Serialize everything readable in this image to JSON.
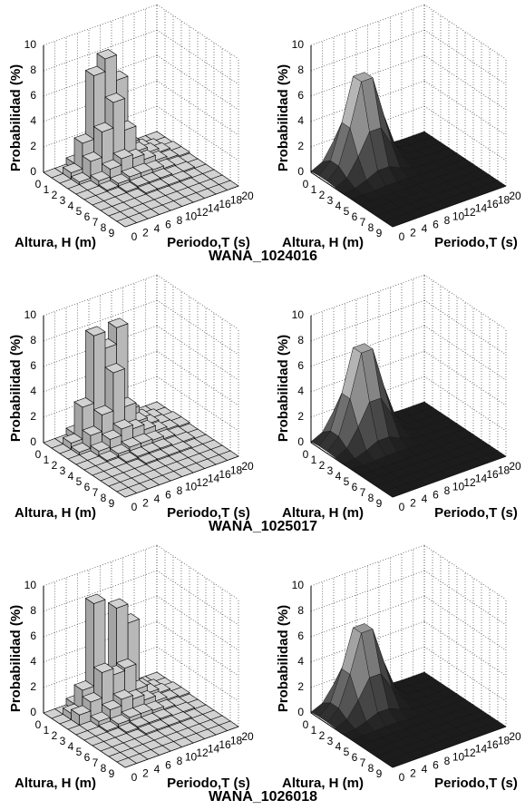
{
  "chart_data": [
    {
      "type": "bar3d",
      "zlabel": "Probabilidad (%)",
      "xlabel": "Altura, H (m)",
      "ylabel": "Periodo,T (s)",
      "color": "#c8c8c8",
      "grid": true,
      "xlim": [
        0,
        10
      ],
      "ylim": [
        0,
        20
      ],
      "zlim": [
        0,
        10
      ],
      "xticks": [
        0,
        1,
        2,
        3,
        4,
        5,
        6,
        7,
        8,
        9
      ],
      "yticks": [
        0,
        2,
        4,
        6,
        8,
        10,
        12,
        14,
        16,
        18,
        20
      ],
      "zticks": [
        0,
        2,
        4,
        6,
        8,
        10
      ],
      "x": [
        0,
        1,
        2,
        3,
        4,
        5,
        6,
        7,
        8,
        9
      ],
      "y": [
        0,
        2,
        4,
        6,
        8,
        10,
        12,
        14,
        16,
        18
      ],
      "z": [
        [
          0,
          0,
          0.5,
          1,
          1,
          0.5,
          0.3,
          0.1,
          0,
          0
        ],
        [
          0,
          0.5,
          2.5,
          7.5,
          8.5,
          6.5,
          1.2,
          0.5,
          0.2,
          0
        ],
        [
          0,
          0.2,
          1.5,
          3.5,
          5.5,
          3,
          1,
          0.6,
          0.3,
          0.1
        ],
        [
          0,
          0,
          0.4,
          1,
          1.5,
          1.2,
          0.8,
          0.4,
          0.2,
          0.1
        ],
        [
          0,
          0,
          0.1,
          0.3,
          0.5,
          0.5,
          0.4,
          0.2,
          0.1,
          0
        ],
        [
          0,
          0,
          0,
          0.1,
          0.2,
          0.2,
          0.2,
          0.1,
          0.1,
          0
        ],
        [
          0,
          0,
          0,
          0,
          0.1,
          0.1,
          0.1,
          0.1,
          0,
          0
        ],
        [
          0,
          0,
          0,
          0,
          0,
          0,
          0,
          0,
          0,
          0
        ],
        [
          0,
          0,
          0,
          0,
          0,
          0,
          0,
          0,
          0,
          0
        ],
        [
          0,
          0,
          0,
          0,
          0,
          0,
          0,
          0,
          0,
          0
        ]
      ]
    },
    {
      "type": "surface",
      "zlabel": "Probabilidad (%)",
      "xlabel": "Altura, H (m)",
      "ylabel": "Periodo,T (s)",
      "color": "#111111",
      "grid": true,
      "xlim": [
        0,
        10
      ],
      "ylim": [
        0,
        20
      ],
      "zlim": [
        0,
        10
      ],
      "xticks": [
        0,
        1,
        2,
        3,
        4,
        5,
        6,
        7,
        8,
        9
      ],
      "yticks": [
        0,
        2,
        4,
        6,
        8,
        10,
        12,
        14,
        16,
        18,
        20
      ],
      "zticks": [
        0,
        2,
        4,
        6,
        8,
        10
      ],
      "x": [
        0,
        1,
        2,
        3,
        4,
        5,
        6,
        7,
        8,
        9,
        10
      ],
      "y": [
        0,
        2,
        4,
        6,
        8,
        10,
        12,
        14,
        16,
        18,
        20
      ],
      "z": [
        [
          0.08,
          0.51,
          1.85,
          3.51,
          3.51,
          1.85,
          0.51,
          0.08,
          0.01,
          0,
          0
        ],
        [
          0.15,
          1.03,
          3.71,
          7.02,
          7.02,
          3.71,
          1.03,
          0.15,
          0.01,
          0,
          0
        ],
        [
          0.15,
          1.03,
          3.71,
          7.02,
          7.02,
          3.71,
          1.03,
          0.15,
          0.01,
          0,
          0
        ],
        [
          0.08,
          0.51,
          1.85,
          3.51,
          3.51,
          1.85,
          0.51,
          0.08,
          0.01,
          0,
          0
        ],
        [
          0.02,
          0.13,
          0.46,
          0.88,
          0.88,
          0.46,
          0.13,
          0.02,
          0,
          0,
          0
        ],
        [
          0,
          0.02,
          0.06,
          0.11,
          0.11,
          0.06,
          0.02,
          0,
          0,
          0,
          0
        ],
        [
          0,
          0,
          0,
          0.01,
          0.01,
          0,
          0,
          0,
          0,
          0,
          0
        ],
        [
          0,
          0,
          0,
          0,
          0,
          0,
          0,
          0,
          0,
          0,
          0
        ],
        [
          0,
          0,
          0,
          0,
          0,
          0,
          0,
          0,
          0,
          0,
          0
        ],
        [
          0,
          0,
          0,
          0,
          0,
          0,
          0,
          0,
          0,
          0,
          0
        ],
        [
          0,
          0,
          0,
          0,
          0,
          0,
          0,
          0,
          0,
          0,
          0
        ]
      ]
    },
    {
      "type": "bar3d",
      "zlabel": "Probabilidad (%)",
      "xlabel": "Altura, H (m)",
      "ylabel": "Periodo,T (s)",
      "color": "#c8c8c8",
      "grid": true,
      "xlim": [
        0,
        10
      ],
      "ylim": [
        0,
        20
      ],
      "zlim": [
        0,
        10
      ],
      "xticks": [
        0,
        1,
        2,
        3,
        4,
        5,
        6,
        7,
        8,
        9
      ],
      "yticks": [
        0,
        2,
        4,
        6,
        8,
        10,
        12,
        14,
        16,
        18,
        20
      ],
      "zticks": [
        0,
        2,
        4,
        6,
        8,
        10
      ],
      "x": [
        0,
        1,
        2,
        3,
        4,
        5,
        6,
        7,
        8,
        9
      ],
      "y": [
        0,
        2,
        4,
        6,
        8,
        10,
        12,
        14,
        16,
        18
      ],
      "z": [
        [
          0,
          0,
          0.5,
          1,
          1,
          0.5,
          0.3,
          0.1,
          0,
          0
        ],
        [
          0,
          0.5,
          3,
          8.3,
          7,
          8.3,
          1.5,
          0.5,
          0.2,
          0
        ],
        [
          0,
          0.2,
          1.2,
          2.5,
          5.5,
          2.5,
          1,
          0.5,
          0.2,
          0.1
        ],
        [
          0,
          0,
          0.4,
          1,
          1.5,
          1.2,
          0.8,
          0.4,
          0.2,
          0.1
        ],
        [
          0,
          0,
          0.1,
          0.3,
          0.5,
          0.5,
          0.4,
          0.2,
          0.1,
          0
        ],
        [
          0,
          0,
          0,
          0.1,
          0.2,
          0.2,
          0.2,
          0.1,
          0.1,
          0
        ],
        [
          0,
          0,
          0,
          0,
          0.1,
          0.1,
          0.1,
          0.1,
          0,
          0
        ],
        [
          0,
          0,
          0,
          0,
          0,
          0,
          0,
          0,
          0,
          0
        ],
        [
          0,
          0,
          0,
          0,
          0,
          0,
          0,
          0,
          0,
          0
        ],
        [
          0,
          0,
          0,
          0,
          0,
          0,
          0,
          0,
          0,
          0
        ]
      ]
    },
    {
      "type": "surface",
      "zlabel": "Probabilidad (%)",
      "xlabel": "Altura, H (m)",
      "ylabel": "Periodo,T (s)",
      "color": "#111111",
      "grid": true,
      "xlim": [
        0,
        10
      ],
      "ylim": [
        0,
        20
      ],
      "zlim": [
        0,
        10
      ],
      "xticks": [
        0,
        1,
        2,
        3,
        4,
        5,
        6,
        7,
        8,
        9
      ],
      "yticks": [
        0,
        2,
        4,
        6,
        8,
        10,
        12,
        14,
        16,
        18,
        20
      ],
      "zticks": [
        0,
        2,
        4,
        6,
        8,
        10
      ],
      "x": [
        0,
        1,
        2,
        3,
        4,
        5,
        6,
        7,
        8,
        9,
        10
      ],
      "y": [
        0,
        2,
        4,
        6,
        8,
        10,
        12,
        14,
        16,
        18,
        20
      ],
      "z": [
        [
          0.08,
          0.51,
          1.85,
          3.51,
          3.51,
          1.85,
          0.51,
          0.08,
          0.01,
          0,
          0
        ],
        [
          0.15,
          1.02,
          3.67,
          6.95,
          6.95,
          3.67,
          1.02,
          0.15,
          0.01,
          0,
          0
        ],
        [
          0.15,
          1.02,
          3.67,
          6.95,
          6.95,
          3.67,
          1.02,
          0.15,
          0.01,
          0,
          0
        ],
        [
          0.08,
          0.51,
          1.85,
          3.51,
          3.51,
          1.85,
          0.51,
          0.08,
          0.01,
          0,
          0
        ],
        [
          0.02,
          0.13,
          0.46,
          0.88,
          0.88,
          0.46,
          0.13,
          0.02,
          0,
          0,
          0
        ],
        [
          0,
          0.02,
          0.06,
          0.11,
          0.11,
          0.06,
          0.02,
          0,
          0,
          0,
          0
        ],
        [
          0,
          0,
          0,
          0.01,
          0.01,
          0,
          0,
          0,
          0,
          0,
          0
        ],
        [
          0,
          0,
          0,
          0,
          0,
          0,
          0,
          0,
          0,
          0,
          0
        ],
        [
          0,
          0,
          0,
          0,
          0,
          0,
          0,
          0,
          0,
          0,
          0
        ],
        [
          0,
          0,
          0,
          0,
          0,
          0,
          0,
          0,
          0,
          0,
          0
        ],
        [
          0,
          0,
          0,
          0,
          0,
          0,
          0,
          0,
          0,
          0,
          0
        ]
      ]
    },
    {
      "type": "bar3d",
      "zlabel": "Probabilidad (%)",
      "xlabel": "Altura, H (m)",
      "ylabel": "Periodo,T (s)",
      "color": "#c8c8c8",
      "grid": true,
      "xlim": [
        0,
        10
      ],
      "ylim": [
        0,
        20
      ],
      "zlim": [
        0,
        10
      ],
      "xticks": [
        0,
        1,
        2,
        3,
        4,
        5,
        6,
        7,
        8,
        9
      ],
      "yticks": [
        0,
        2,
        4,
        6,
        8,
        10,
        12,
        14,
        16,
        18,
        20
      ],
      "zticks": [
        0,
        2,
        4,
        6,
        8,
        10
      ],
      "x": [
        0,
        1,
        2,
        3,
        4,
        5,
        6,
        7,
        8,
        9
      ],
      "y": [
        0,
        2,
        4,
        6,
        8,
        10,
        12,
        14,
        16,
        18
      ],
      "z": [
        [
          0,
          0,
          0.5,
          1,
          1,
          0.5,
          0.3,
          0.1,
          0,
          0
        ],
        [
          0,
          0.5,
          2,
          8.5,
          2.5,
          7.5,
          6,
          0.6,
          0.2,
          0
        ],
        [
          0,
          0.8,
          1.5,
          3.5,
          3,
          3.2,
          1.2,
          0.6,
          0.3,
          0.1
        ],
        [
          0,
          0,
          0.4,
          1,
          1.5,
          1.2,
          0.8,
          0.4,
          0.2,
          0.1
        ],
        [
          0,
          0,
          0.1,
          0.3,
          0.5,
          0.5,
          0.4,
          0.2,
          0.1,
          0
        ],
        [
          0,
          0,
          0,
          0.1,
          0.2,
          0.2,
          0.2,
          0.1,
          0.1,
          0
        ],
        [
          0,
          0,
          0,
          0,
          0.1,
          0.1,
          0.1,
          0.1,
          0,
          0
        ],
        [
          0,
          0,
          0,
          0,
          0,
          0,
          0,
          0,
          0,
          0
        ],
        [
          0,
          0,
          0,
          0,
          0,
          0,
          0,
          0,
          0,
          0
        ],
        [
          0,
          0,
          0,
          0,
          0,
          0,
          0,
          0,
          0,
          0
        ]
      ]
    },
    {
      "type": "surface",
      "zlabel": "Probabilidad (%)",
      "xlabel": "Altura, H (m)",
      "ylabel": "Periodo,T (s)",
      "color": "#111111",
      "grid": true,
      "xlim": [
        0,
        10
      ],
      "ylim": [
        0,
        20
      ],
      "zlim": [
        0,
        10
      ],
      "xticks": [
        0,
        1,
        2,
        3,
        4,
        5,
        6,
        7,
        8,
        9
      ],
      "yticks": [
        0,
        2,
        4,
        6,
        8,
        10,
        12,
        14,
        16,
        18,
        20
      ],
      "zticks": [
        0,
        2,
        4,
        6,
        8,
        10
      ],
      "x": [
        0,
        1,
        2,
        3,
        4,
        5,
        6,
        7,
        8,
        9,
        10
      ],
      "y": [
        0,
        2,
        4,
        6,
        8,
        10,
        12,
        14,
        16,
        18,
        20
      ],
      "z": [
        [
          0.07,
          0.45,
          1.63,
          3.09,
          3.09,
          1.63,
          0.45,
          0.07,
          0.01,
          0,
          0
        ],
        [
          0.13,
          0.91,
          3.26,
          6.18,
          6.18,
          3.26,
          0.91,
          0.13,
          0.01,
          0,
          0
        ],
        [
          0.13,
          0.91,
          3.26,
          6.18,
          6.18,
          3.26,
          0.91,
          0.13,
          0.01,
          0,
          0
        ],
        [
          0.07,
          0.45,
          1.63,
          3.09,
          3.09,
          1.63,
          0.45,
          0.07,
          0.01,
          0,
          0
        ],
        [
          0.02,
          0.11,
          0.4,
          0.77,
          0.77,
          0.4,
          0.11,
          0.02,
          0,
          0,
          0
        ],
        [
          0,
          0.02,
          0.05,
          0.1,
          0.1,
          0.05,
          0.02,
          0,
          0,
          0,
          0
        ],
        [
          0,
          0,
          0,
          0.01,
          0.01,
          0,
          0,
          0,
          0,
          0,
          0
        ],
        [
          0,
          0,
          0,
          0,
          0,
          0,
          0,
          0,
          0,
          0,
          0
        ],
        [
          0,
          0,
          0,
          0,
          0,
          0,
          0,
          0,
          0,
          0,
          0
        ],
        [
          0,
          0,
          0,
          0,
          0,
          0,
          0,
          0,
          0,
          0,
          0
        ],
        [
          0,
          0,
          0,
          0,
          0,
          0,
          0,
          0,
          0,
          0,
          0
        ]
      ]
    }
  ],
  "captions": [
    "WANA_1024016",
    "WANA_1025017",
    "WANA_1026018"
  ]
}
